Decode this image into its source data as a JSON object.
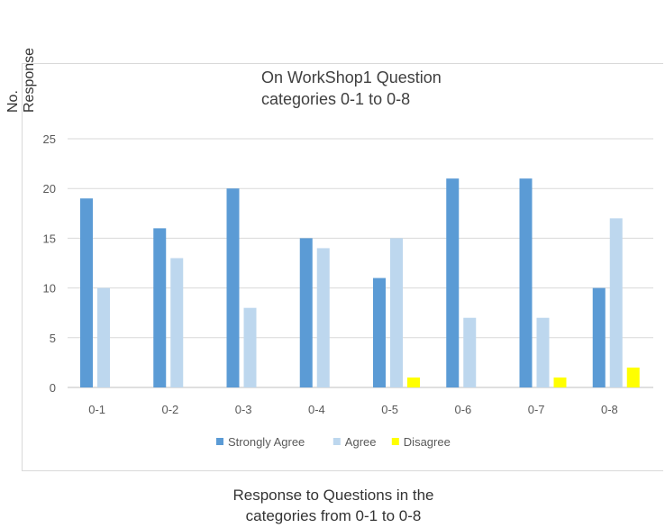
{
  "chart_data": {
    "type": "bar",
    "title": [
      "On WorkShop1 Question",
      "categories 0-1 to 0-8"
    ],
    "ylabel": [
      "No.",
      "Response"
    ],
    "xlabel": [
      "Response to Questions in the",
      "categories from 0-1 to 0-8"
    ],
    "categories": [
      "0-1",
      "0-2",
      "0-3",
      "0-4",
      "0-5",
      "0-6",
      "0-7",
      "0-8"
    ],
    "ylim": [
      0,
      25
    ],
    "yticks": [
      0,
      5,
      10,
      15,
      20,
      25
    ],
    "grid": true,
    "legend_position": "bottom",
    "series": [
      {
        "name": "Strongly Agree",
        "color": "#5b9bd5",
        "values": [
          19,
          16,
          20,
          15,
          11,
          21,
          21,
          10
        ]
      },
      {
        "name": "Agree",
        "color": "#bdd7ee",
        "values": [
          10,
          13,
          8,
          14,
          15,
          7,
          7,
          17
        ]
      },
      {
        "name": "Disagree",
        "color": "#ffff00",
        "values": [
          0,
          0,
          0,
          0,
          1,
          0,
          1,
          2
        ]
      }
    ]
  }
}
